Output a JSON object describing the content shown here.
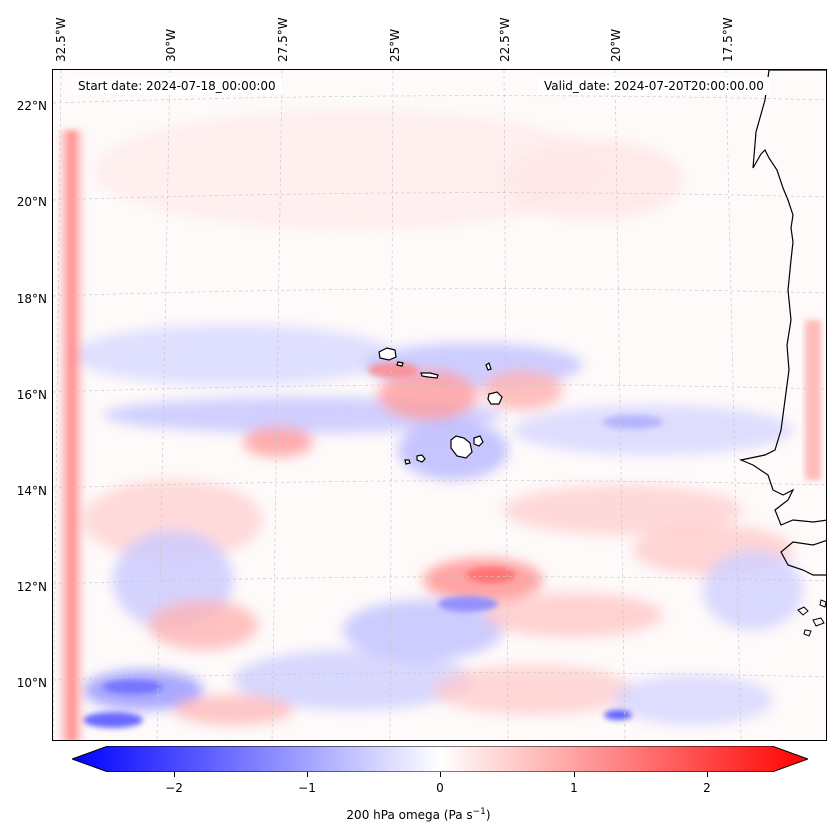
{
  "lon_labels": [
    "32.5°W",
    "30°W",
    "27.5°W",
    "25°W",
    "22.5°W",
    "20°W",
    "17.5°W"
  ],
  "lat_labels": [
    "22°N",
    "20°N",
    "18°N",
    "16°N",
    "14°N",
    "12°N",
    "10°N"
  ],
  "start_date": "Start date: 2024-07-18_00:00:00",
  "valid_date": "Valid_date: 2024-07-20T20:00:00.00",
  "colorbar": {
    "ticks": [
      "−2",
      "−1",
      "0",
      "1",
      "2"
    ],
    "tick_values": [
      -2,
      -1,
      0,
      1,
      2
    ],
    "range": [
      -2.5,
      2.5
    ],
    "label_prefix": "200 hPa omega (Pa s",
    "label_sup": "−1",
    "label_suffix": ")",
    "colormap": "bwr",
    "min_color": "#0000ff",
    "mid_color": "#ffffff",
    "max_color": "#ff0000"
  },
  "colors": {
    "coastline": "#000000",
    "gridline": "#c8c8c8"
  }
}
